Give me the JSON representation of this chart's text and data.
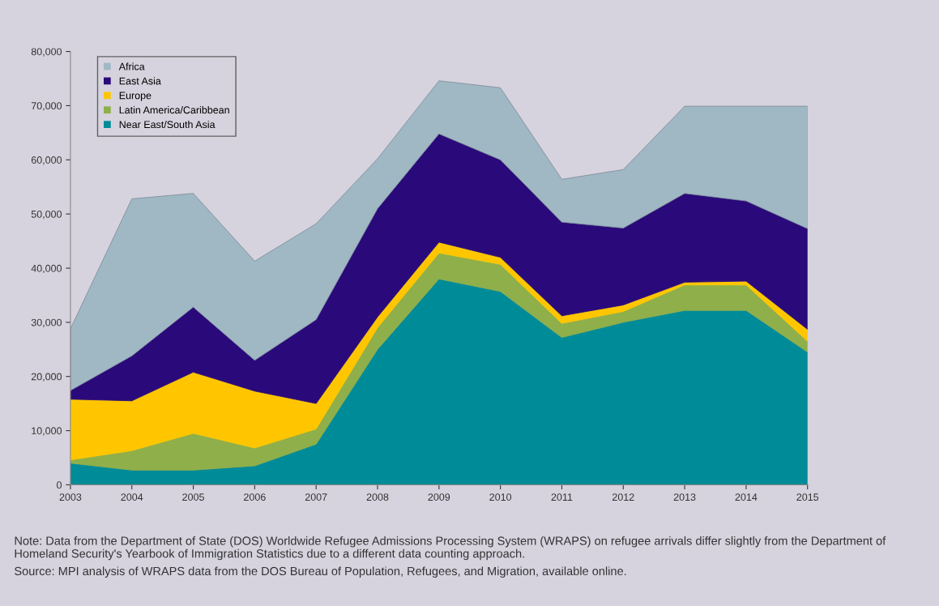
{
  "chart_data": {
    "type": "area",
    "stacked": true,
    "categories": [
      "2003",
      "2004",
      "2005",
      "2006",
      "2007",
      "2008",
      "2009",
      "2010",
      "2011",
      "2012",
      "2013",
      "2014",
      "2015"
    ],
    "series": [
      {
        "name": "Near East/South Asia",
        "color": "#008b99",
        "values": [
          4000,
          2700,
          2700,
          3500,
          7500,
          25000,
          38000,
          35700,
          27200,
          30000,
          32200,
          32200,
          24500
        ]
      },
      {
        "name": "Latin America/Caribbean",
        "color": "#8faf4a",
        "values": [
          600,
          3600,
          6800,
          3300,
          2800,
          4000,
          4800,
          5000,
          2600,
          2000,
          4700,
          4700,
          2000
        ]
      },
      {
        "name": "Europe",
        "color": "#ffc600",
        "values": [
          11200,
          9200,
          11300,
          10500,
          4700,
          2000,
          2000,
          1300,
          1400,
          1200,
          500,
          700,
          2200
        ]
      },
      {
        "name": "East Asia",
        "color": "#2a0a7a",
        "values": [
          1600,
          8300,
          12000,
          5700,
          15500,
          20000,
          20000,
          18000,
          17300,
          14200,
          16400,
          14800,
          18600
        ]
      },
      {
        "name": "Africa",
        "color": "#9fb8c4",
        "values": [
          11400,
          29000,
          21000,
          18300,
          17700,
          9200,
          9800,
          13300,
          7900,
          10800,
          16100,
          17500,
          22600
        ]
      }
    ],
    "ylim": [
      0,
      80000
    ],
    "yticks": [
      0,
      {
        "value": 10000,
        "label": "10,000"
      },
      {
        "value": 20000,
        "label": "20,000"
      },
      {
        "value": 30000,
        "label": "30,000"
      },
      {
        "value": 40000,
        "label": "40,000"
      },
      {
        "value": 50000,
        "label": "50,000"
      },
      {
        "value": 60000,
        "label": "60,000"
      },
      {
        "value": 70000,
        "label": "70,000"
      },
      {
        "value": 80000,
        "label": "80,000"
      }
    ],
    "grid": false,
    "legend": "top left",
    "annotations": [
      "Note: Data from the Department of State (DOS) Worldwide Refugee Admissions Processing System (WRAPS) on refugee arrivals differ slightly from the Department of Homeland Security's Yearbook of Immigration Statistics due to a different data counting approach.",
      "Source: MPI analysis of WRAPS data from the DOS Bureau of Population, Refugees, and Migration, available online."
    ]
  }
}
